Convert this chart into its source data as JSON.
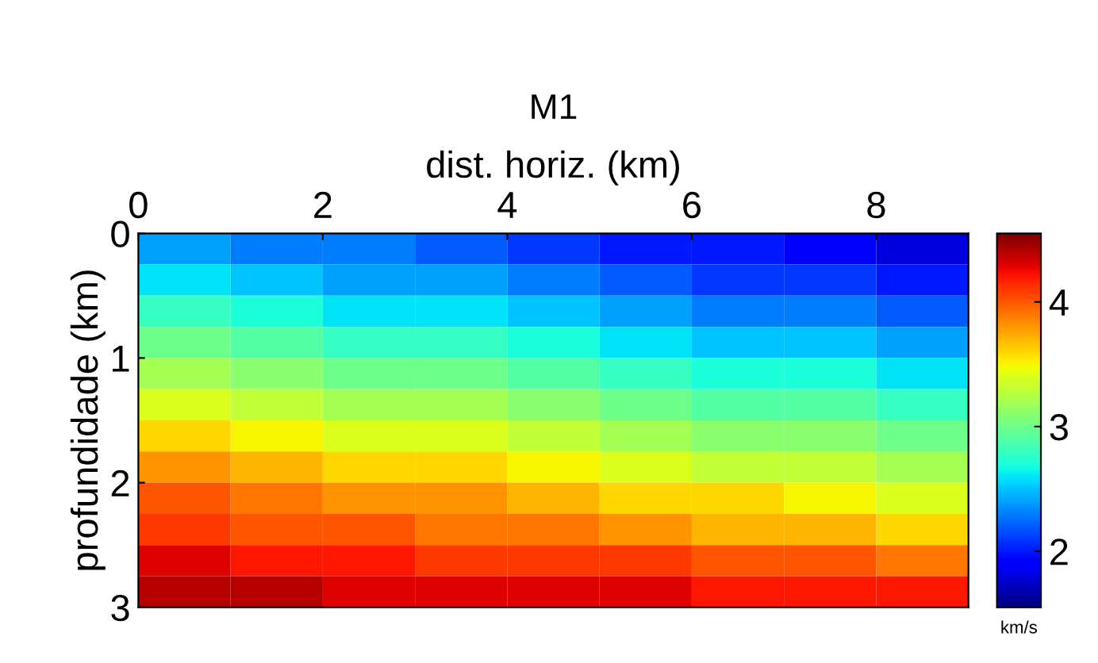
{
  "chart_data": {
    "type": "heatmap",
    "title": "M1",
    "xlabel": "dist. horiz. (km)",
    "ylabel": "profundidade (km)",
    "clabel": "km/s",
    "xlim": [
      0,
      9
    ],
    "ylim": [
      3,
      0
    ],
    "xticks": [
      0,
      2,
      4,
      6,
      8
    ],
    "yticks": [
      0,
      1,
      2,
      3
    ],
    "clim": [
      1.55,
      4.55
    ],
    "cticks": [
      2,
      3,
      4
    ],
    "cells": [
      [
        2.4,
        2.3,
        2.3,
        2.2,
        2.1,
        2.0,
        2.0,
        1.9,
        1.8
      ],
      [
        2.6,
        2.5,
        2.4,
        2.4,
        2.3,
        2.2,
        2.1,
        2.1,
        2.0
      ],
      [
        2.8,
        2.7,
        2.6,
        2.6,
        2.5,
        2.4,
        2.3,
        2.3,
        2.2
      ],
      [
        3.0,
        2.9,
        2.8,
        2.8,
        2.7,
        2.6,
        2.5,
        2.5,
        2.4
      ],
      [
        3.2,
        3.1,
        3.0,
        3.0,
        2.9,
        2.8,
        2.7,
        2.7,
        2.6
      ],
      [
        3.4,
        3.3,
        3.2,
        3.2,
        3.1,
        3.0,
        2.9,
        2.9,
        2.8
      ],
      [
        3.6,
        3.5,
        3.4,
        3.4,
        3.3,
        3.2,
        3.1,
        3.1,
        3.0
      ],
      [
        3.8,
        3.7,
        3.6,
        3.6,
        3.5,
        3.4,
        3.3,
        3.3,
        3.2
      ],
      [
        4.0,
        3.9,
        3.8,
        3.8,
        3.7,
        3.6,
        3.6,
        3.5,
        3.4
      ],
      [
        4.1,
        4.0,
        4.0,
        3.9,
        3.9,
        3.8,
        3.7,
        3.7,
        3.6
      ],
      [
        4.3,
        4.2,
        4.2,
        4.1,
        4.1,
        4.1,
        4.0,
        4.0,
        3.9
      ],
      [
        4.4,
        4.4,
        4.3,
        4.3,
        4.3,
        4.3,
        4.2,
        4.2,
        4.2
      ]
    ]
  }
}
